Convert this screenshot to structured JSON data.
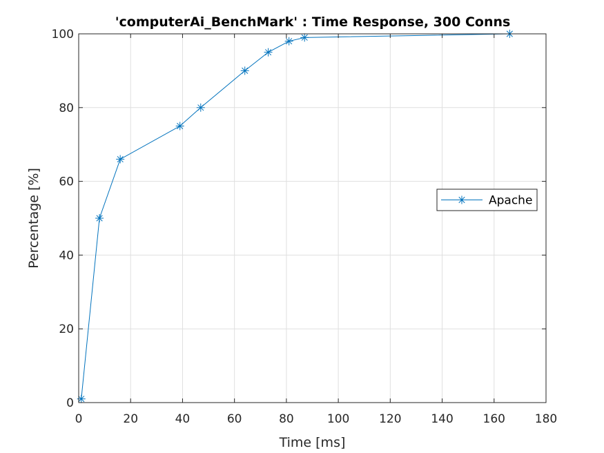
{
  "chart_data": {
    "type": "line",
    "title": "'computerAi_BenchMark' : Time Response, 300 Conns",
    "xlabel": "Time [ms]",
    "ylabel": "Percentage [%]",
    "xlim": [
      0,
      180
    ],
    "ylim": [
      0,
      100
    ],
    "xticks": [
      0,
      20,
      40,
      60,
      80,
      100,
      120,
      140,
      160,
      180
    ],
    "yticks": [
      0,
      20,
      40,
      60,
      80,
      100
    ],
    "grid": true,
    "legend_position": "right",
    "series": [
      {
        "name": "Apache",
        "color": "#0072BD",
        "marker": "asterisk",
        "x": [
          1,
          8,
          16,
          39,
          47,
          64,
          73,
          81,
          87,
          166
        ],
        "y": [
          1,
          50,
          66,
          75,
          80,
          90,
          95,
          98,
          99,
          100
        ]
      }
    ]
  }
}
